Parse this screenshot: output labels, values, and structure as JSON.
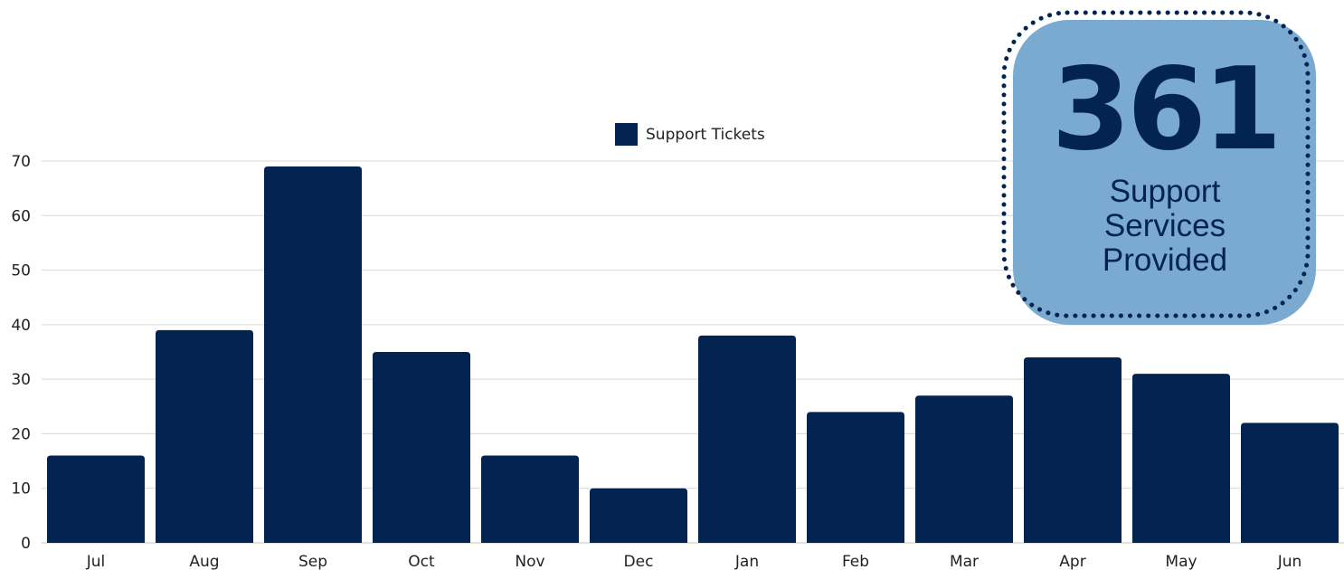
{
  "colors": {
    "bar": "#032450",
    "callout_bg": "#7aaad0",
    "callout_text": "#032450",
    "grid": "#d9d9d9"
  },
  "callout": {
    "number": "361",
    "lines": [
      "Support",
      "Services",
      "Provided"
    ]
  },
  "chart_data": {
    "type": "bar",
    "title": "",
    "legend": {
      "position": "top-center",
      "entries": [
        "Support Tickets"
      ]
    },
    "categories": [
      "Jul",
      "Aug",
      "Sep",
      "Oct",
      "Nov",
      "Dec",
      "Jan",
      "Feb",
      "Mar",
      "Apr",
      "May",
      "Jun"
    ],
    "series": [
      {
        "name": "Support Tickets",
        "values": [
          16,
          39,
          69,
          35,
          16,
          10,
          38,
          24,
          27,
          34,
          31,
          22
        ]
      }
    ],
    "ylim": [
      0,
      70
    ],
    "yticks": [
      0,
      10,
      20,
      30,
      40,
      50,
      60,
      70
    ],
    "grid": true
  }
}
